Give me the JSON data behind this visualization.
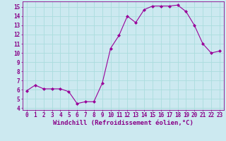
{
  "x": [
    0,
    1,
    2,
    3,
    4,
    5,
    6,
    7,
    8,
    9,
    10,
    11,
    12,
    13,
    14,
    15,
    16,
    17,
    18,
    19,
    20,
    21,
    22,
    23
  ],
  "y": [
    5.9,
    6.5,
    6.1,
    6.1,
    6.1,
    5.8,
    4.5,
    4.7,
    4.7,
    6.7,
    10.5,
    11.9,
    14.0,
    13.3,
    14.7,
    15.1,
    15.1,
    15.1,
    15.2,
    14.5,
    13.0,
    11.0,
    10.0,
    10.2
  ],
  "line_color": "#990099",
  "marker": "D",
  "marker_size": 2.0,
  "bg_color": "#cce9f0",
  "grid_color": "#aadddd",
  "xlabel": "Windchill (Refroidissement éolien,°C)",
  "ylim": [
    3.8,
    15.6
  ],
  "xlim": [
    -0.5,
    23.5
  ],
  "yticks": [
    4,
    5,
    6,
    7,
    8,
    9,
    10,
    11,
    12,
    13,
    14,
    15
  ],
  "xticks": [
    0,
    1,
    2,
    3,
    4,
    5,
    6,
    7,
    8,
    9,
    10,
    11,
    12,
    13,
    14,
    15,
    16,
    17,
    18,
    19,
    20,
    21,
    22,
    23
  ],
  "tick_fontsize": 5.5,
  "xlabel_fontsize": 6.5,
  "label_color": "#880088"
}
